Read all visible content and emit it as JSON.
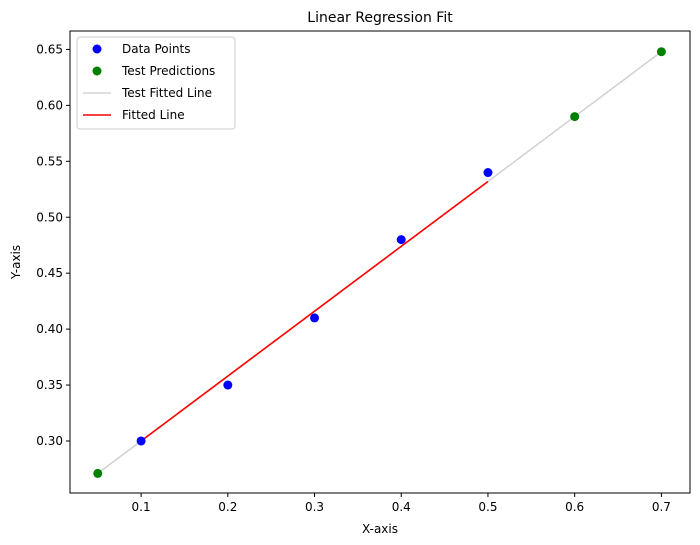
{
  "chart_data": {
    "type": "scatter",
    "title": "Linear Regression Fit",
    "xlabel": "X-axis",
    "ylabel": "Y-axis",
    "xlim": [
      0.018,
      0.733
    ],
    "ylim": [
      0.2535,
      0.6665
    ],
    "xticks": [
      0.1,
      0.2,
      0.3,
      0.4,
      0.5,
      0.6,
      0.7
    ],
    "xtick_labels": [
      "0.1",
      "0.2",
      "0.3",
      "0.4",
      "0.5",
      "0.6",
      "0.7"
    ],
    "yticks": [
      0.3,
      0.35,
      0.4,
      0.45,
      0.5,
      0.55,
      0.6,
      0.65
    ],
    "ytick_labels": [
      "0.30",
      "0.35",
      "0.40",
      "0.45",
      "0.50",
      "0.55",
      "0.60",
      "0.65"
    ],
    "grid": false,
    "legend_position": "top-left",
    "series": [
      {
        "name": "Data Points",
        "kind": "scatter",
        "color": "#0000ff",
        "x": [
          0.1,
          0.2,
          0.3,
          0.4,
          0.5
        ],
        "y": [
          0.3,
          0.35,
          0.41,
          0.48,
          0.54
        ]
      },
      {
        "name": "Test Predictions",
        "kind": "scatter",
        "color": "#008000",
        "x": [
          0.05,
          0.6,
          0.7
        ],
        "y": [
          0.271,
          0.59,
          0.648
        ]
      },
      {
        "name": "Test Fitted Line",
        "kind": "line",
        "color": "#d3d3d3",
        "x": [
          0.05,
          0.7
        ],
        "y": [
          0.271,
          0.648
        ]
      },
      {
        "name": "Fitted Line",
        "kind": "line",
        "color": "#ff0000",
        "x": [
          0.1,
          0.5
        ],
        "y": [
          0.3,
          0.532
        ]
      }
    ],
    "legend_order": [
      "Data Points",
      "Test Predictions",
      "Test Fitted Line",
      "Fitted Line"
    ]
  }
}
